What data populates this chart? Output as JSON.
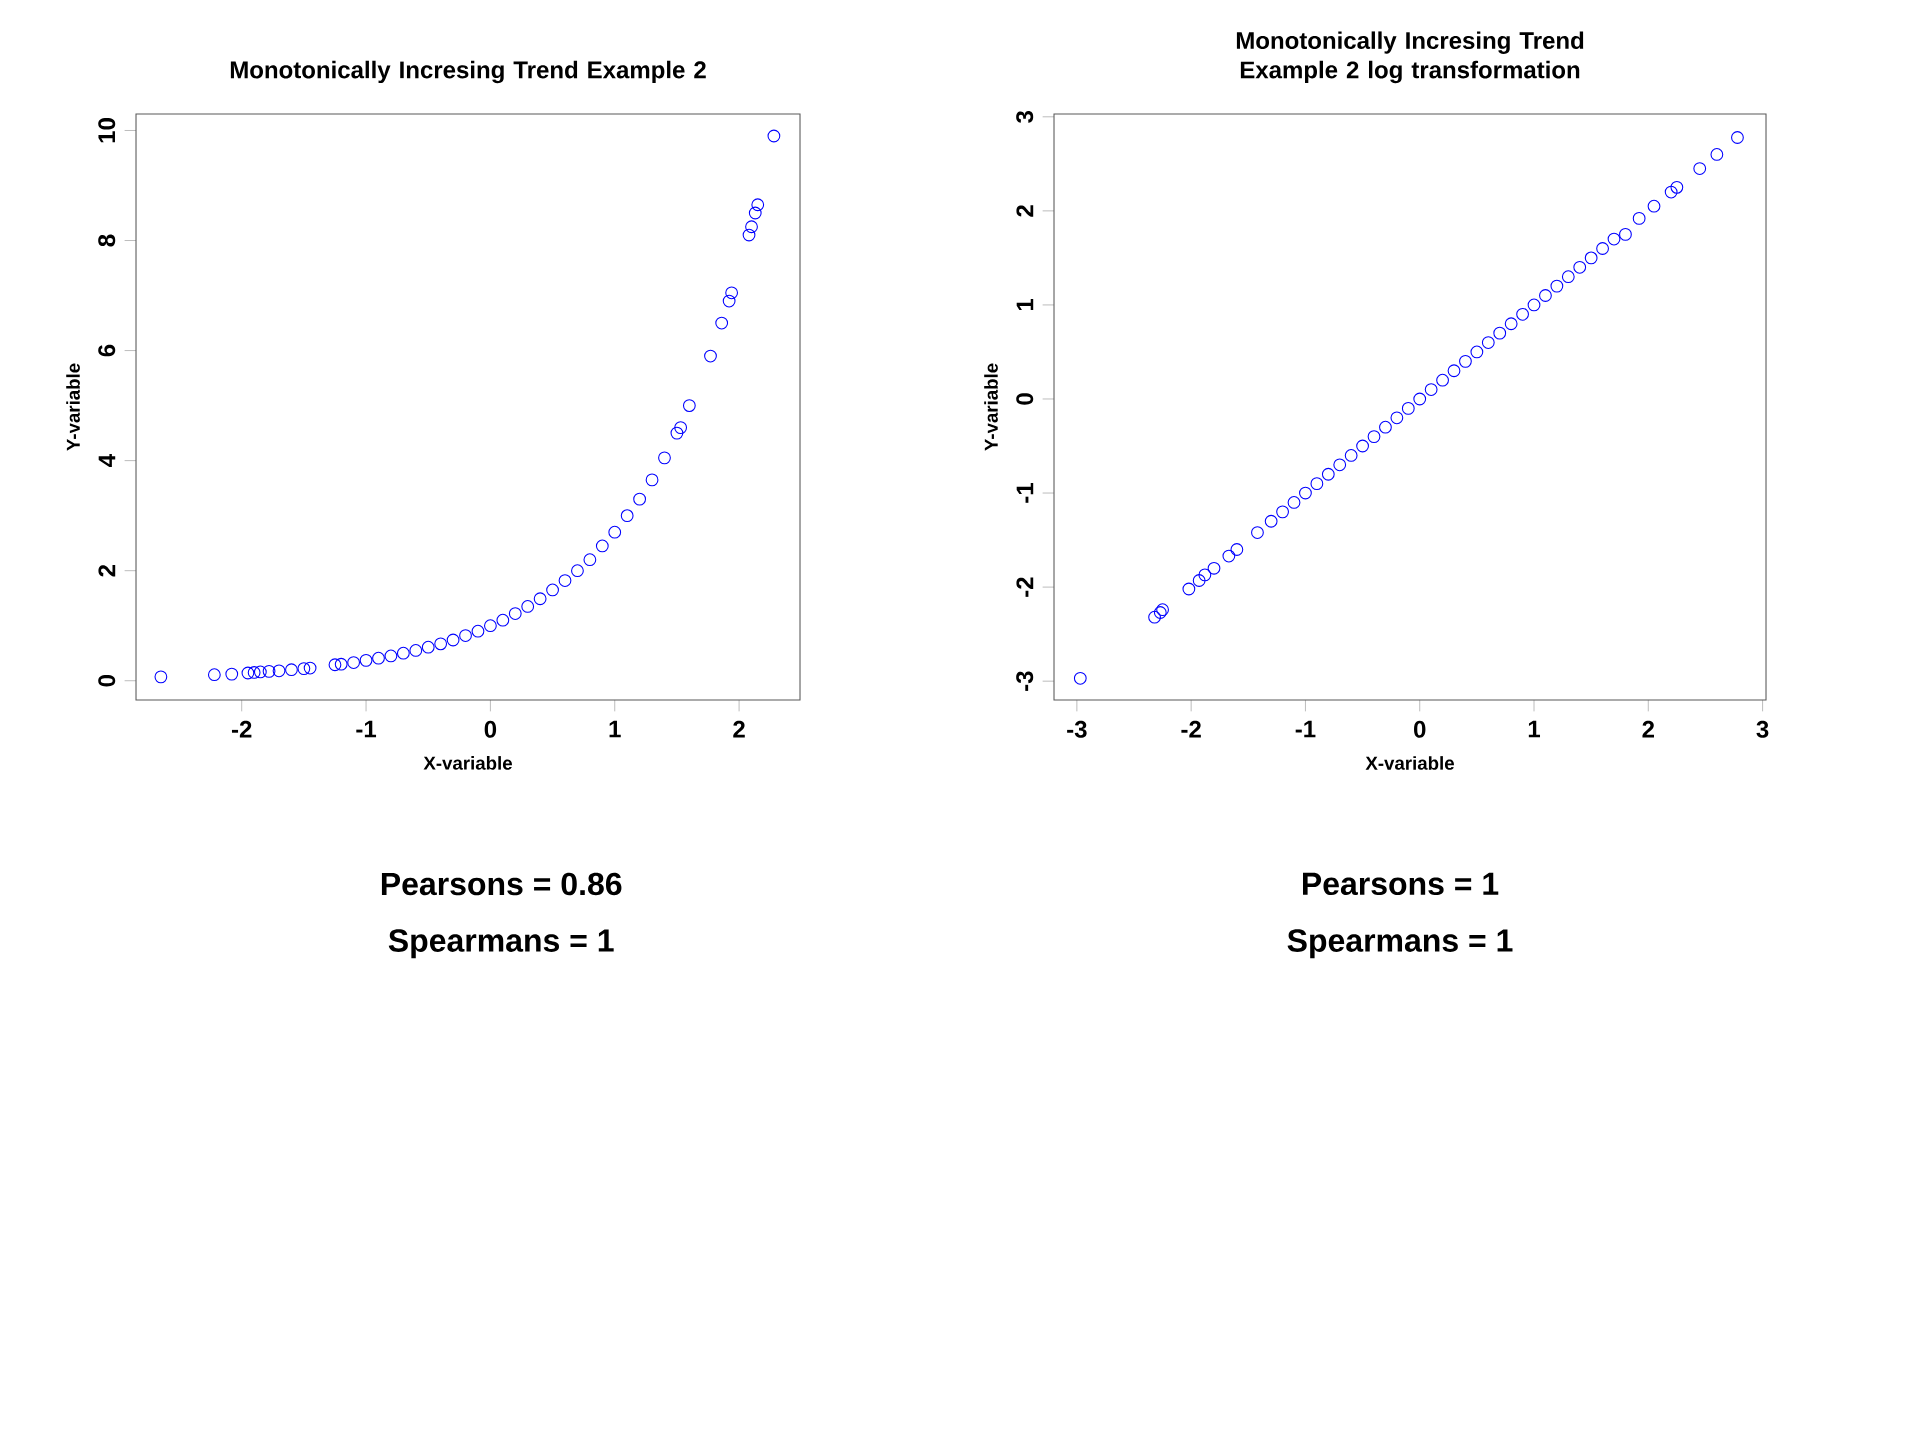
{
  "chart_data": [
    {
      "type": "scatter",
      "title": "Monotonically Incresing Trend Example 2",
      "xlabel": "X-variable",
      "ylabel": "Y-variable",
      "color": "#0000ff",
      "marker": "circle",
      "x": [
        -2.65,
        -2.22,
        -2.08,
        -1.95,
        -1.9,
        -1.85,
        -1.78,
        -1.7,
        -1.6,
        -1.5,
        -1.45,
        -1.25,
        -1.2,
        -1.1,
        -1.0,
        -0.9,
        -0.8,
        -0.7,
        -0.6,
        -0.5,
        -0.4,
        -0.3,
        -0.2,
        -0.1,
        0,
        0.1,
        0.2,
        0.3,
        0.4,
        0.5,
        0.6,
        0.7,
        0.8,
        0.9,
        1.0,
        1.1,
        1.2,
        1.3,
        1.4,
        1.5,
        1.53,
        1.6,
        1.77,
        1.86,
        1.92,
        1.94,
        2.08,
        2.1,
        2.13,
        2.15,
        2.28
      ],
      "values": [
        0.07,
        0.11,
        0.12,
        0.14,
        0.15,
        0.16,
        0.17,
        0.18,
        0.2,
        0.22,
        0.23,
        0.29,
        0.3,
        0.33,
        0.37,
        0.41,
        0.45,
        0.5,
        0.55,
        0.61,
        0.67,
        0.74,
        0.82,
        0.9,
        1.0,
        1.1,
        1.22,
        1.35,
        1.49,
        1.65,
        1.82,
        2.0,
        2.2,
        2.45,
        2.7,
        3.0,
        3.3,
        3.65,
        4.05,
        4.5,
        4.6,
        5.0,
        5.9,
        6.5,
        6.9,
        7.05,
        8.1,
        8.25,
        8.5,
        8.65,
        9.9
      ],
      "xlim": [
        -2.85,
        2.49
      ],
      "ylim": [
        -0.35,
        10.3
      ],
      "xticks": [
        -2,
        -1,
        0,
        1,
        2
      ],
      "yticks": [
        0,
        2,
        4,
        6,
        8,
        10
      ],
      "annotations": [
        "Pearsons = 0.86",
        "Spearmans = 1"
      ]
    },
    {
      "type": "scatter",
      "title": "Monotonically Incresing Trend Example 2 log transformation",
      "xlabel": "X-variable",
      "ylabel": "Y-variable",
      "color": "#0000ff",
      "marker": "circle",
      "x": [
        -2.97,
        -2.32,
        -2.27,
        -2.25,
        -2.02,
        -1.93,
        -1.88,
        -1.8,
        -1.67,
        -1.6,
        -1.42,
        -1.3,
        -1.2,
        -1.1,
        -1.0,
        -0.9,
        -0.8,
        -0.7,
        -0.6,
        -0.5,
        -0.4,
        -0.3,
        -0.2,
        -0.1,
        0,
        0.1,
        0.2,
        0.3,
        0.4,
        0.5,
        0.6,
        0.7,
        0.8,
        0.9,
        1.0,
        1.1,
        1.2,
        1.3,
        1.4,
        1.5,
        1.6,
        1.7,
        1.8,
        1.92,
        2.05,
        2.2,
        2.25,
        2.45,
        2.6,
        2.78
      ],
      "values": [
        -2.97,
        -2.32,
        -2.27,
        -2.24,
        -2.02,
        -1.93,
        -1.87,
        -1.8,
        -1.67,
        -1.6,
        -1.42,
        -1.3,
        -1.2,
        -1.1,
        -1.0,
        -0.9,
        -0.8,
        -0.7,
        -0.6,
        -0.5,
        -0.4,
        -0.3,
        -0.2,
        -0.1,
        0,
        0.1,
        0.2,
        0.3,
        0.4,
        0.5,
        0.6,
        0.7,
        0.8,
        0.9,
        1.0,
        1.1,
        1.2,
        1.3,
        1.4,
        1.5,
        1.6,
        1.7,
        1.75,
        1.92,
        2.05,
        2.2,
        2.25,
        2.45,
        2.6,
        2.78
      ],
      "xlim": [
        -3.2,
        3.03
      ],
      "ylim": [
        -3.2,
        3.03
      ],
      "xticks": [
        -3,
        -2,
        -1,
        0,
        1,
        2,
        3
      ],
      "yticks": [
        -3,
        -2,
        -1,
        0,
        1,
        2,
        3
      ],
      "annotations": [
        "Pearsons = 1",
        "Spearmans = 1"
      ]
    }
  ]
}
